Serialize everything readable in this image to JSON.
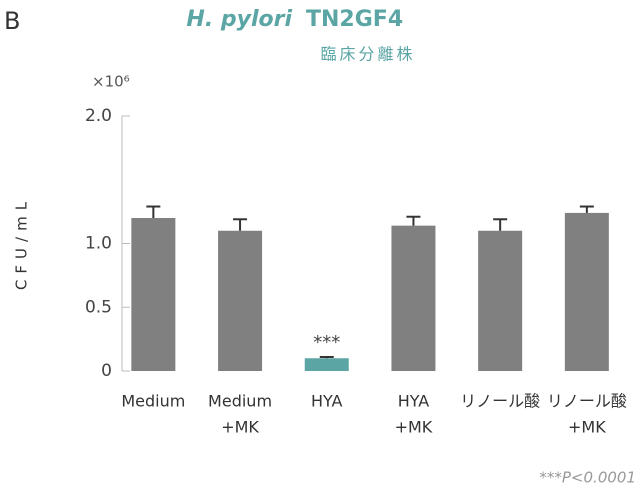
{
  "panel_label": "B",
  "chart_data": {
    "type": "bar",
    "title": "H. pylori",
    "title_suffix": "TN2GF4",
    "subtitle": "臨床分離株",
    "y_unit": "×10⁶",
    "y_label": "CFU/mL",
    "categories": [
      [
        "Medium"
      ],
      [
        "Medium",
        "+MK"
      ],
      [
        "HYA"
      ],
      [
        "HYA",
        "+MK"
      ],
      [
        "リノール酸"
      ],
      [
        "リノール酸",
        "+MK"
      ]
    ],
    "values": [
      1.2,
      1.1,
      0.1,
      1.14,
      1.1,
      1.24
    ],
    "errors": [
      0.09,
      0.09,
      0.01,
      0.07,
      0.09,
      0.05
    ],
    "colors": [
      "#808080",
      "#808080",
      "#5ba5a5",
      "#808080",
      "#808080",
      "#808080"
    ],
    "ylim": [
      0,
      2.0
    ],
    "yticks": [
      0,
      0.5,
      {
        "value": 1,
        "label": "1.0"
      },
      {
        "value": 2,
        "label": "2.0"
      }
    ],
    "annotations": [
      "***"
    ],
    "footnote": "***P<0.0001"
  }
}
